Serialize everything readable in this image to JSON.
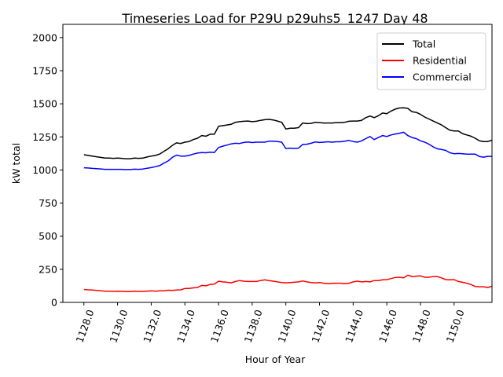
{
  "chart_data": {
    "type": "line",
    "title": "Timeseries Load for P29U p29uhs5_1247  Day 48",
    "xlabel": "Hour of Year",
    "ylabel": "kW total",
    "xlim": [
      1126.75,
      1152.25
    ],
    "ylim": [
      0,
      2100
    ],
    "x_ticks": [
      1128,
      1130,
      1132,
      1134,
      1136,
      1138,
      1140,
      1142,
      1144,
      1146,
      1148,
      1150
    ],
    "x_tick_labels": [
      "1128.0",
      "1130.0",
      "1132.0",
      "1134.0",
      "1136.0",
      "1138.0",
      "1140.0",
      "1142.0",
      "1144.0",
      "1146.0",
      "1148.0",
      "1150.0"
    ],
    "y_ticks": [
      0,
      250,
      500,
      750,
      1000,
      1250,
      1500,
      1750,
      2000
    ],
    "y_tick_labels": [
      "0",
      "250",
      "500",
      "750",
      "1000",
      "1250",
      "1500",
      "1750",
      "2000"
    ],
    "legend_position": "top-right",
    "x_start": 1128,
    "x_step": 0.25,
    "series": [
      {
        "name": "Total",
        "color": "#000000",
        "values": [
          1115,
          1110,
          1105,
          1100,
          1095,
          1090,
          1090,
          1088,
          1090,
          1088,
          1085,
          1085,
          1090,
          1088,
          1090,
          1098,
          1105,
          1110,
          1120,
          1140,
          1160,
          1185,
          1205,
          1200,
          1210,
          1215,
          1230,
          1240,
          1260,
          1255,
          1270,
          1270,
          1330,
          1335,
          1340,
          1345,
          1360,
          1365,
          1368,
          1370,
          1365,
          1368,
          1375,
          1380,
          1382,
          1378,
          1370,
          1360,
          1310,
          1315,
          1315,
          1320,
          1355,
          1350,
          1352,
          1360,
          1358,
          1355,
          1355,
          1355,
          1358,
          1358,
          1360,
          1368,
          1370,
          1370,
          1375,
          1395,
          1408,
          1395,
          1410,
          1430,
          1425,
          1445,
          1460,
          1468,
          1470,
          1465,
          1440,
          1435,
          1420,
          1400,
          1385,
          1370,
          1355,
          1340,
          1320,
          1300,
          1295,
          1295,
          1275,
          1265,
          1255,
          1240,
          1220,
          1215,
          1215,
          1225
        ]
      },
      {
        "name": "Residential",
        "color": "#ff0000",
        "values": [
          98,
          95,
          93,
          90,
          87,
          85,
          85,
          83,
          85,
          83,
          82,
          82,
          84,
          83,
          83,
          85,
          87,
          85,
          87,
          88,
          92,
          90,
          93,
          95,
          105,
          105,
          110,
          112,
          128,
          125,
          135,
          138,
          160,
          155,
          152,
          148,
          158,
          165,
          160,
          158,
          158,
          158,
          165,
          170,
          165,
          160,
          155,
          150,
          148,
          150,
          152,
          155,
          162,
          155,
          150,
          148,
          150,
          145,
          142,
          145,
          145,
          145,
          142,
          145,
          155,
          160,
          155,
          158,
          155,
          165,
          165,
          170,
          172,
          180,
          188,
          190,
          185,
          205,
          195,
          198,
          200,
          190,
          190,
          195,
          195,
          185,
          172,
          170,
          172,
          158,
          152,
          145,
          135,
          120,
          118,
          118,
          112,
          122
        ]
      },
      {
        "name": "Commercial",
        "color": "#0000ff",
        "values": [
          1017,
          1015,
          1012,
          1010,
          1008,
          1005,
          1005,
          1005,
          1005,
          1005,
          1003,
          1003,
          1006,
          1005,
          1007,
          1013,
          1018,
          1025,
          1033,
          1052,
          1068,
          1095,
          1112,
          1105,
          1105,
          1110,
          1120,
          1128,
          1132,
          1130,
          1135,
          1132,
          1170,
          1180,
          1188,
          1197,
          1202,
          1200,
          1208,
          1212,
          1207,
          1210,
          1210,
          1210,
          1217,
          1218,
          1215,
          1210,
          1162,
          1165,
          1163,
          1165,
          1193,
          1195,
          1202,
          1212,
          1208,
          1210,
          1213,
          1210,
          1213,
          1213,
          1218,
          1223,
          1215,
          1210,
          1220,
          1237,
          1253,
          1230,
          1245,
          1260,
          1253,
          1265,
          1272,
          1278,
          1285,
          1260,
          1245,
          1237,
          1220,
          1210,
          1195,
          1175,
          1160,
          1155,
          1148,
          1130,
          1123,
          1125,
          1123,
          1120,
          1120,
          1120,
          1102,
          1097,
          1103,
          1103
        ]
      }
    ]
  }
}
